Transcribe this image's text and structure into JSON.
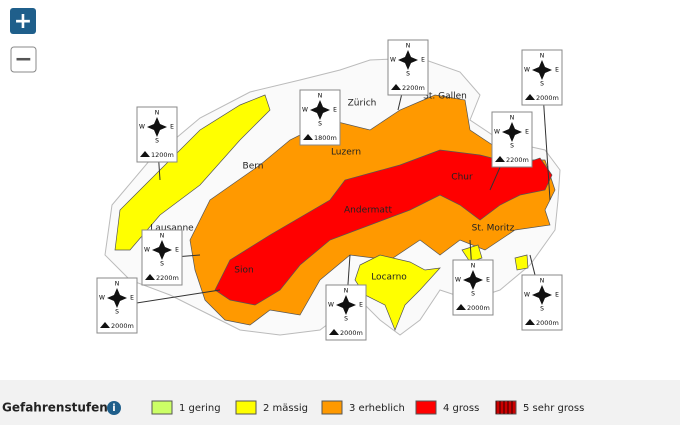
{
  "zoom_controls": {
    "zoom_in": "+",
    "zoom_out": "−"
  },
  "map": {
    "cities": [
      "Zürich",
      "St. Gallen",
      "Luzern",
      "Bern",
      "Chur",
      "Lausanne",
      "Andermatt",
      "St. Moritz",
      "Sion",
      "Locarno"
    ],
    "compass_letters": {
      "n": "N",
      "e": "E",
      "s": "S",
      "w": "W"
    },
    "elevation_markers": [
      "2200m",
      "2000m",
      "1200m",
      "1800m",
      "2200m",
      "2200m",
      "2000m",
      "2000m",
      "2000m",
      "2000m"
    ]
  },
  "legend": {
    "title": "Gefahrenstufen",
    "levels": [
      {
        "label": "1 gering",
        "color": "#ccff66"
      },
      {
        "label": "2 mässig",
        "color": "#ffff00"
      },
      {
        "label": "3 erheblich",
        "color": "#ff9900"
      },
      {
        "label": "4 gross",
        "color": "#ff0000"
      },
      {
        "label": "5 sehr gross",
        "color": "#cc0000"
      }
    ]
  }
}
